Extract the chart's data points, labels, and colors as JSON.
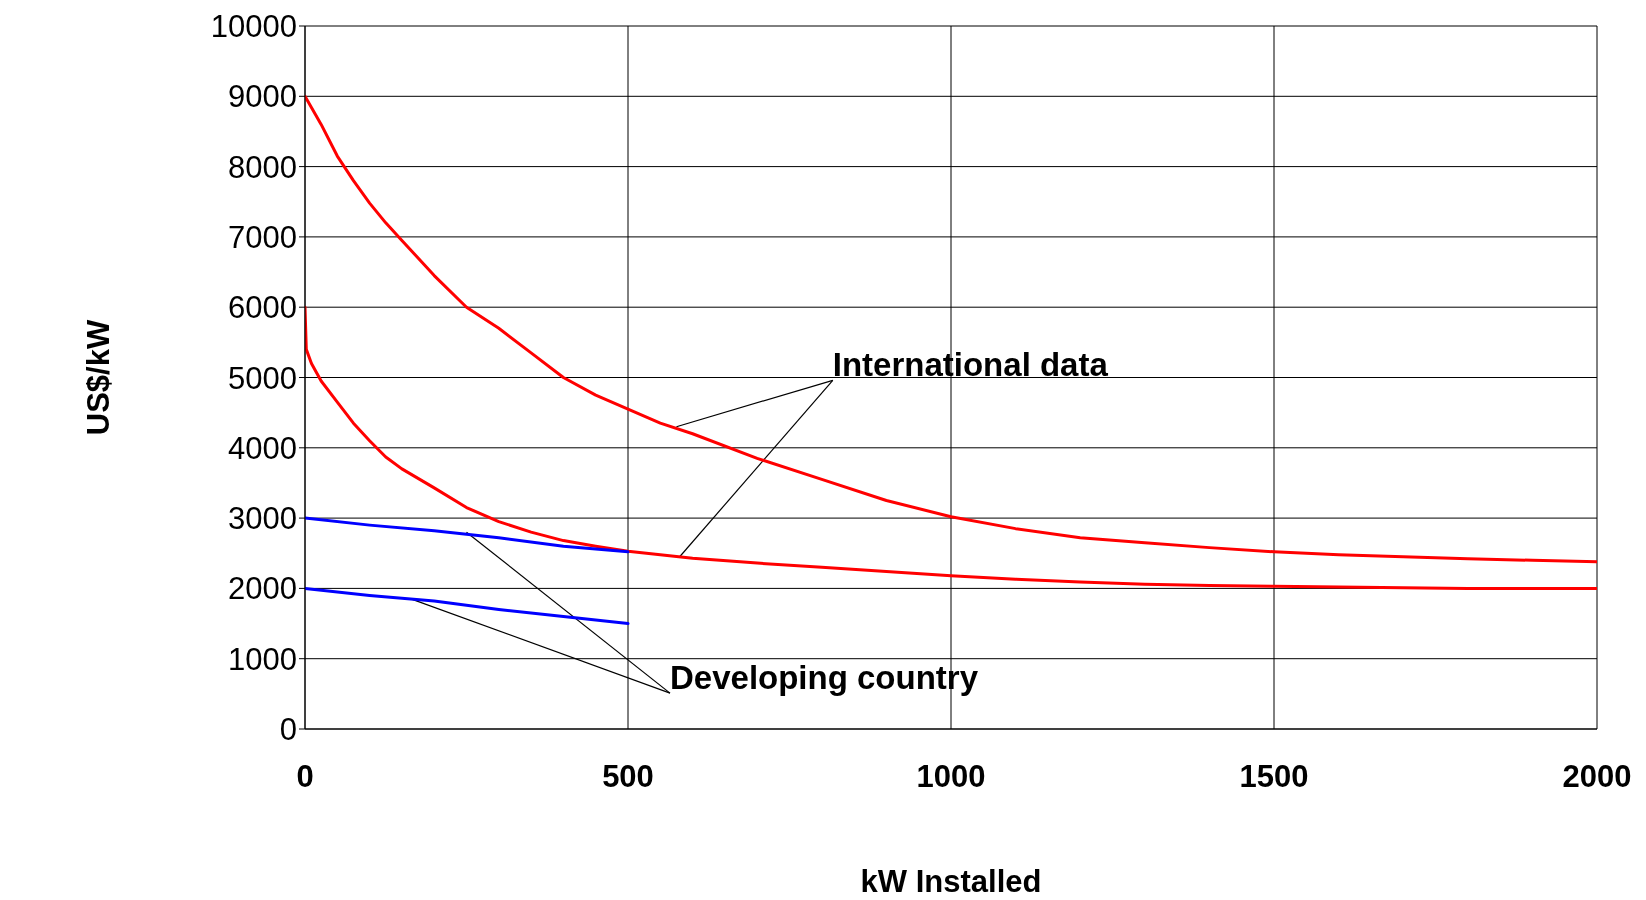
{
  "chart_data": {
    "type": "line",
    "xlabel": "kW Installed",
    "ylabel": "US$/kW",
    "xlim": [
      0,
      2000
    ],
    "xticks": [
      0,
      500,
      1000,
      1500,
      2000
    ],
    "ylim": [
      0,
      10000
    ],
    "yticks": [
      0,
      1000,
      2000,
      3000,
      4000,
      5000,
      6000,
      7000,
      8000,
      9000,
      10000
    ],
    "grid": true,
    "legend": false,
    "marker": "none",
    "line_style": "solid",
    "series": [
      {
        "color": "#ff0000",
        "x": [
          0,
          25,
          50,
          75,
          100,
          125,
          150,
          200,
          250,
          300,
          350,
          400,
          450,
          500,
          550,
          600,
          700,
          800,
          900,
          1000,
          1100,
          1200,
          1300,
          1400,
          1500,
          1600,
          1700,
          1800,
          1900,
          2000
        ],
        "values": [
          9000,
          8600,
          8150,
          7800,
          7480,
          7200,
          6950,
          6450,
          6000,
          5700,
          5350,
          5000,
          4750,
          4550,
          4350,
          4200,
          3850,
          3550,
          3250,
          3020,
          2850,
          2720,
          2650,
          2580,
          2520,
          2480,
          2450,
          2420,
          2400,
          2380
        ]
      },
      {
        "color": "#ff0000",
        "x": [
          0,
          2,
          10,
          25,
          50,
          75,
          100,
          125,
          150,
          200,
          250,
          300,
          350,
          400,
          450,
          500,
          600,
          700,
          800,
          900,
          1000,
          1100,
          1200,
          1300,
          1400,
          1500,
          1600,
          1700,
          1800,
          2000
        ],
        "values": [
          6000,
          5400,
          5200,
          4950,
          4650,
          4350,
          4100,
          3870,
          3700,
          3430,
          3150,
          2950,
          2800,
          2680,
          2600,
          2530,
          2430,
          2360,
          2300,
          2240,
          2180,
          2130,
          2090,
          2060,
          2040,
          2030,
          2020,
          2010,
          2000,
          2000
        ]
      },
      {
        "color": "#0000ff",
        "x": [
          0,
          100,
          200,
          300,
          400,
          500
        ],
        "values": [
          3000,
          2900,
          2820,
          2720,
          2600,
          2520
        ]
      },
      {
        "color": "#0000ff",
        "x": [
          0,
          100,
          200,
          300,
          400,
          500
        ],
        "values": [
          2000,
          1900,
          1820,
          1700,
          1600,
          1500
        ]
      }
    ],
    "annotations": [
      {
        "text": "International data",
        "x": 575,
        "y": 4300
      },
      {
        "text": "Developing country",
        "x": 250,
        "y": 2800
      }
    ]
  }
}
